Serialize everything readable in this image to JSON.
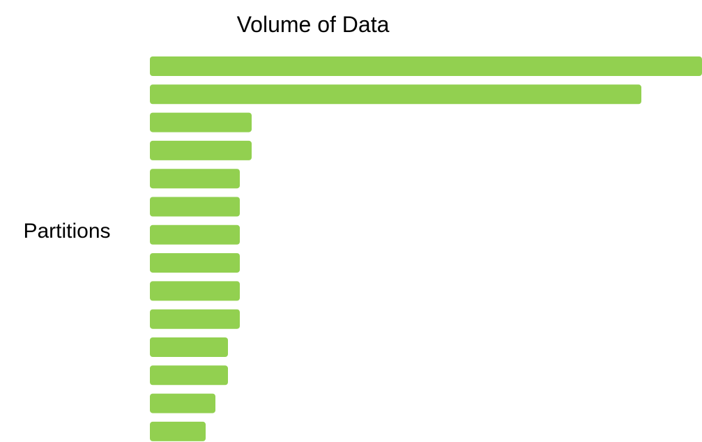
{
  "chart_data": {
    "type": "bar",
    "orientation": "horizontal",
    "title": "Volume of Data",
    "xlabel": "",
    "ylabel": "Partitions",
    "categories": [
      "",
      "",
      "",
      "",
      "",
      "",
      "",
      "",
      "",
      "",
      "",
      "",
      "",
      ""
    ],
    "values": [
      792,
      705,
      146,
      146,
      129,
      129,
      129,
      129,
      129,
      129,
      112,
      112,
      94,
      80
    ],
    "xlim": [
      0,
      792
    ],
    "grid": false,
    "legend": "none",
    "colors": {
      "bar": "#92D050"
    }
  }
}
